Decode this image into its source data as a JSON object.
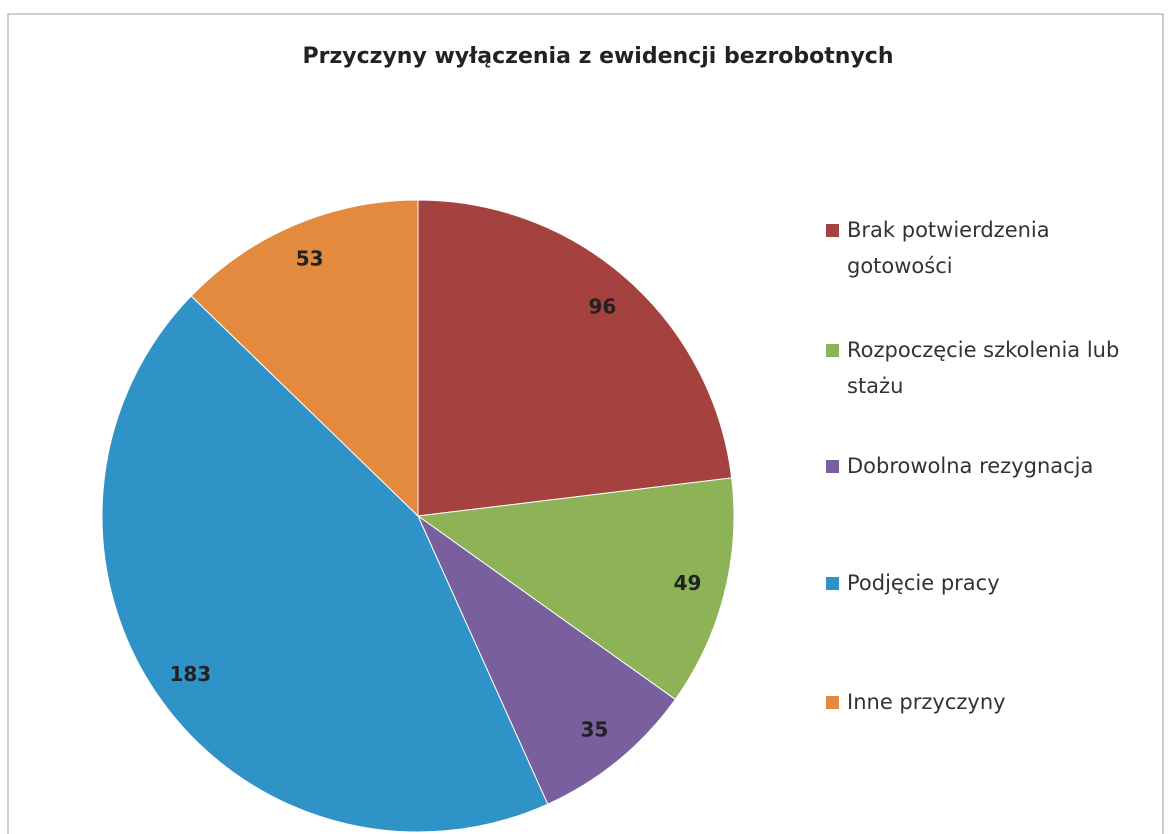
{
  "chart_data": {
    "type": "pie",
    "title": "Przyczyny wyłączenia z ewidencji bezrobotnych",
    "categories": [
      "Brak potwierdzenia gotowości",
      "Rozpoczęcie szkolenia lub stażu",
      "Dobrowolna rezygnacja",
      "Podjęcie pracy",
      "Inne przyczyny"
    ],
    "values": [
      96,
      49,
      35,
      183,
      53
    ],
    "colors": [
      "#a5423f",
      "#8db356",
      "#7a5f9f",
      "#2f93c8",
      "#e38a3e"
    ],
    "legend": "right"
  }
}
